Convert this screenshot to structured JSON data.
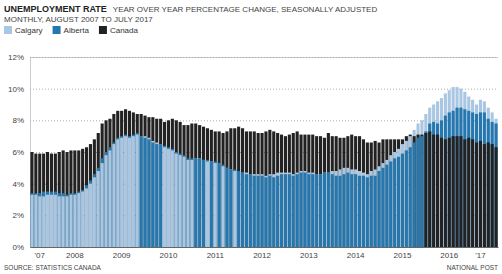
{
  "chart_data": {
    "type": "bar",
    "title": "UNEMPLOYMENT RATE",
    "subtitle": [
      "YEAR OVER YEAR PERCENTAGE CHANGE, SEASONALLY ADJUSTED",
      "MONTHLY, AUGUST 2007 TO JULY 2017"
    ],
    "annotations": [
      "SOURCE: STATISTICS CANADA",
      "NATIONAL POST"
    ],
    "legend": "top-left",
    "grid": true,
    "categories": [
      null,
      null,
      "'07",
      null,
      null,
      null,
      null,
      null,
      null,
      null,
      null,
      "2008",
      null,
      null,
      null,
      null,
      null,
      null,
      null,
      null,
      null,
      null,
      null,
      "2009",
      null,
      null,
      null,
      null,
      null,
      null,
      null,
      null,
      null,
      null,
      null,
      "2010",
      null,
      null,
      null,
      null,
      null,
      null,
      null,
      null,
      null,
      null,
      null,
      "2011",
      null,
      null,
      null,
      null,
      null,
      null,
      null,
      null,
      null,
      null,
      null,
      "2012",
      null,
      null,
      null,
      null,
      null,
      null,
      null,
      null,
      null,
      null,
      null,
      "2013",
      null,
      null,
      null,
      null,
      null,
      null,
      null,
      null,
      null,
      null,
      null,
      "2014",
      null,
      null,
      null,
      null,
      null,
      null,
      null,
      null,
      null,
      null,
      null,
      "2015",
      null,
      null,
      null,
      null,
      null,
      null,
      null,
      null,
      null,
      null,
      null,
      "2016",
      null,
      null,
      null,
      null,
      null,
      null,
      null,
      "'17",
      null,
      null,
      null,
      null
    ],
    "series": [
      {
        "name": "Calgary",
        "color": "#a9c6e3",
        "values": [
          3.3,
          3.3,
          3.2,
          3.2,
          3.3,
          3.3,
          3.3,
          3.2,
          3.2,
          3.2,
          3.3,
          3.3,
          3.4,
          3.5,
          3.7,
          4.0,
          4.4,
          4.8,
          5.3,
          5.8,
          6.1,
          6.5,
          6.8,
          6.9,
          7.0,
          6.9,
          7.0,
          7.1,
          7.0,
          7.0,
          6.9,
          6.7,
          6.6,
          6.5,
          6.3,
          6.2,
          6.1,
          5.9,
          5.8,
          5.7,
          5.5,
          5.5,
          5.6,
          5.6,
          5.5,
          5.4,
          5.4,
          5.3,
          5.3,
          5.1,
          5.0,
          4.9,
          4.8,
          4.8,
          4.7,
          4.7,
          4.6,
          4.6,
          4.6,
          4.6,
          4.5,
          4.6,
          4.6,
          4.7,
          4.7,
          4.7,
          4.7,
          4.6,
          4.7,
          4.8,
          4.8,
          4.7,
          4.7,
          4.6,
          4.6,
          4.7,
          4.7,
          4.8,
          4.8,
          4.9,
          5.0,
          5.0,
          4.9,
          4.9,
          4.8,
          4.7,
          4.6,
          4.8,
          4.9,
          5.1,
          5.3,
          5.5,
          5.8,
          6.0,
          6.2,
          6.5,
          6.7,
          7.0,
          7.4,
          7.8,
          8.0,
          8.4,
          8.8,
          9.0,
          9.2,
          9.4,
          9.7,
          9.9,
          10.1,
          10.1,
          10.0,
          9.8,
          9.5,
          9.3,
          9.0,
          9.3,
          9.2,
          8.8,
          8.5,
          8.1
        ]
      },
      {
        "name": "Alberta",
        "color": "#2677ae",
        "values": [
          3.4,
          3.4,
          3.4,
          3.5,
          3.5,
          3.5,
          3.5,
          3.4,
          3.4,
          3.3,
          3.4,
          3.4,
          3.5,
          3.6,
          3.9,
          4.2,
          4.6,
          5.0,
          5.6,
          6.0,
          6.3,
          6.6,
          6.9,
          7.0,
          7.1,
          7.0,
          7.1,
          7.2,
          7.0,
          6.9,
          6.8,
          6.6,
          6.5,
          6.5,
          6.4,
          6.3,
          6.2,
          6.0,
          5.9,
          5.8,
          5.6,
          5.6,
          5.6,
          5.6,
          5.5,
          5.5,
          5.4,
          5.4,
          5.3,
          5.2,
          5.0,
          4.9,
          4.9,
          4.8,
          4.7,
          4.6,
          4.6,
          4.5,
          4.5,
          4.5,
          4.4,
          4.5,
          4.4,
          4.5,
          4.6,
          4.6,
          4.6,
          4.5,
          4.6,
          4.7,
          4.7,
          4.6,
          4.6,
          4.6,
          4.6,
          4.7,
          4.7,
          4.6,
          4.5,
          4.5,
          4.6,
          4.7,
          4.6,
          4.6,
          4.5,
          4.5,
          4.4,
          4.5,
          4.5,
          4.8,
          5.0,
          5.2,
          5.4,
          5.6,
          5.7,
          5.9,
          6.1,
          6.3,
          6.6,
          6.9,
          7.0,
          7.3,
          7.8,
          7.9,
          7.8,
          8.0,
          8.3,
          8.5,
          8.6,
          8.8,
          8.8,
          8.7,
          8.6,
          8.5,
          8.4,
          8.5,
          8.5,
          8.1,
          7.9,
          7.8
        ]
      },
      {
        "name": "Canada",
        "color": "#222222",
        "values": [
          6.0,
          5.9,
          5.9,
          5.9,
          6.0,
          5.9,
          5.9,
          6.0,
          6.1,
          6.0,
          6.1,
          6.1,
          6.1,
          6.2,
          6.3,
          6.5,
          6.8,
          7.2,
          7.8,
          8.0,
          8.1,
          8.4,
          8.6,
          8.6,
          8.7,
          8.6,
          8.5,
          8.4,
          8.4,
          8.3,
          8.2,
          8.2,
          8.1,
          8.1,
          7.9,
          8.0,
          8.1,
          8.0,
          7.9,
          7.7,
          7.7,
          7.8,
          7.8,
          7.7,
          7.6,
          7.5,
          7.4,
          7.3,
          7.3,
          7.2,
          7.3,
          7.5,
          7.5,
          7.6,
          7.5,
          7.3,
          7.3,
          7.3,
          7.2,
          7.2,
          7.3,
          7.4,
          7.3,
          7.2,
          7.1,
          7.0,
          7.1,
          7.2,
          7.3,
          7.1,
          7.1,
          7.1,
          7.1,
          7.0,
          7.0,
          6.9,
          7.2,
          7.0,
          7.0,
          6.9,
          6.9,
          7.0,
          7.1,
          7.0,
          7.0,
          6.8,
          6.6,
          6.6,
          6.7,
          6.6,
          6.8,
          6.8,
          6.8,
          6.8,
          6.8,
          6.8,
          7.0,
          7.1,
          7.0,
          7.1,
          7.1,
          7.2,
          7.3,
          7.1,
          7.1,
          6.9,
          6.8,
          6.9,
          7.0,
          7.0,
          7.0,
          6.8,
          6.9,
          6.8,
          6.6,
          6.7,
          6.5,
          6.6,
          6.5,
          6.3
        ]
      }
    ],
    "ylim": [
      0,
      12
    ],
    "yticks": [
      {
        "value": 0,
        "label": "0%"
      },
      {
        "value": 2,
        "label": "2%"
      },
      {
        "value": 4,
        "label": "4%"
      },
      {
        "value": 6,
        "label": "6%"
      },
      {
        "value": 8,
        "label": "8%"
      },
      {
        "value": 10,
        "label": "10%"
      },
      {
        "value": 12,
        "label": "12%"
      }
    ]
  }
}
